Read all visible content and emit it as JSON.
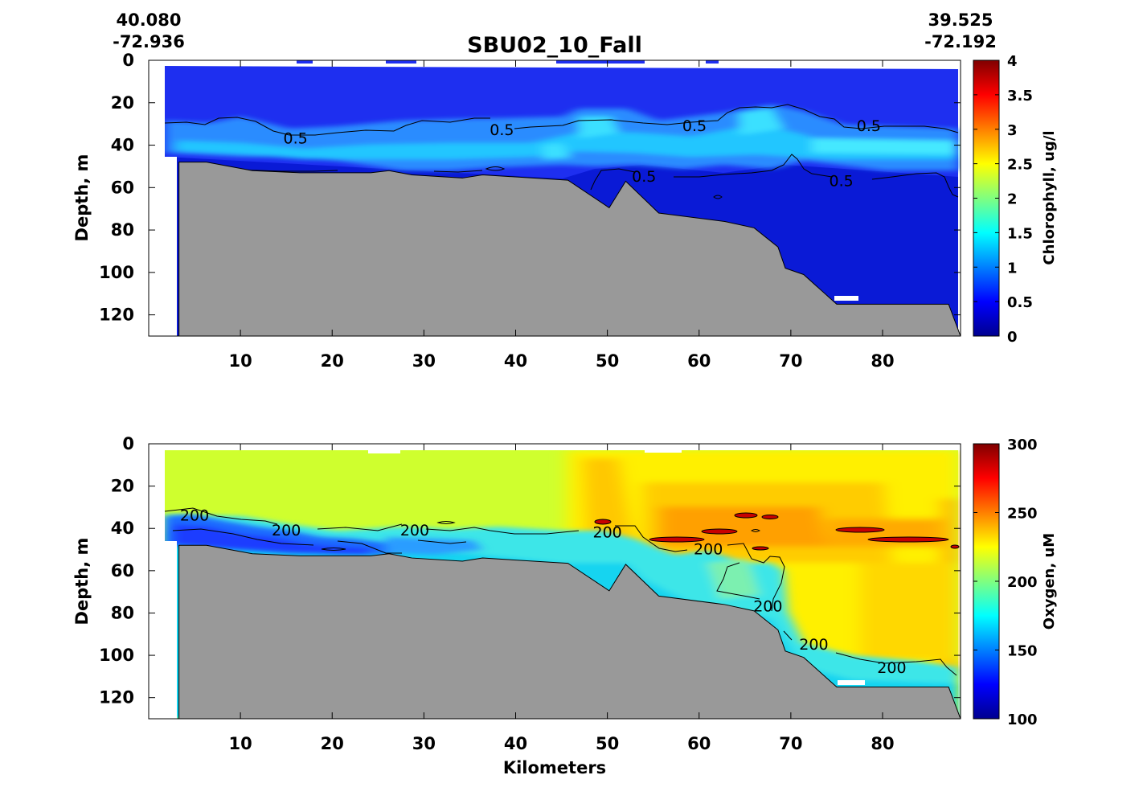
{
  "figure": {
    "title": "SBU02_10_Fall",
    "start_coord": {
      "lat": "40.080",
      "lon": "-72.936"
    },
    "end_coord": {
      "lat": "39.525",
      "lon": "-72.192"
    },
    "xlabel": "Kilometers"
  },
  "chart_data": [
    {
      "type": "heatmap",
      "variable": "Chlorophyll",
      "ylabel": "Depth, m",
      "colorbar_label": "Chlorophyll, ug/l",
      "colormap": "jet",
      "xlim": [
        0,
        88.5
      ],
      "ylim": [
        130,
        0
      ],
      "xticks": [
        10,
        20,
        30,
        40,
        50,
        60,
        70,
        80
      ],
      "yticks": [
        0,
        20,
        40,
        60,
        80,
        100,
        120
      ],
      "clim": [
        0,
        4
      ],
      "cticks": [
        "0",
        "0.5",
        "1",
        "1.5",
        "2",
        "2.5",
        "3",
        "3.5",
        "4"
      ],
      "contour_level": 0.5,
      "contour_labels": [
        {
          "text": "0.5",
          "x": 16,
          "y": 37
        },
        {
          "text": "0.5",
          "x": 38.5,
          "y": 33
        },
        {
          "text": "0.5",
          "x": 59.5,
          "y": 31
        },
        {
          "text": "0.5",
          "x": 78.5,
          "y": 31
        },
        {
          "text": "0.5",
          "x": 54,
          "y": 55
        },
        {
          "text": "0.5",
          "x": 75.5,
          "y": 57
        }
      ],
      "features": [
        "Low chlorophyll (~0.2 ug/l) in the upper 30 m",
        "Subsurface maximum ~1 ug/l at 30-50 m depth",
        "Values ~0.3 ug/l below 55 m"
      ]
    },
    {
      "type": "heatmap",
      "variable": "Oxygen",
      "ylabel": "Depth, m",
      "colorbar_label": "Oxygen, uM",
      "colormap": "jet",
      "xlim": [
        0,
        88.5
      ],
      "ylim": [
        130,
        0
      ],
      "xticks": [
        10,
        20,
        30,
        40,
        50,
        60,
        70,
        80
      ],
      "yticks": [
        0,
        20,
        40,
        60,
        80,
        100,
        120
      ],
      "clim": [
        100,
        300
      ],
      "cticks": [
        "100",
        "150",
        "200",
        "250",
        "300"
      ],
      "contour_level": 200,
      "contour_labels": [
        {
          "text": "200",
          "x": 5,
          "y": 34
        },
        {
          "text": "200",
          "x": 15,
          "y": 41
        },
        {
          "text": "200",
          "x": 29,
          "y": 41
        },
        {
          "text": "200",
          "x": 50,
          "y": 42
        },
        {
          "text": "200",
          "x": 61,
          "y": 50
        },
        {
          "text": "200",
          "x": 67.5,
          "y": 77
        },
        {
          "text": "200",
          "x": 72.5,
          "y": 95
        },
        {
          "text": "200",
          "x": 81,
          "y": 106
        }
      ],
      "features": [
        "Surface oxygen ~215 uM west of 45 km, ~230 uM east",
        "Local maxima ~260-280 uM at 40-50 m between 48 and 90 km",
        "Low oxygen ~120-140 uM at 35-50 m for x < 30 km",
        "Bottom water ~175 uM"
      ]
    }
  ],
  "bathymetry": {
    "x": [
      3.3,
      6.3,
      11.3,
      16.5,
      19.5,
      24.2,
      26.2,
      28.7,
      34.2,
      36.4,
      45.7,
      50.2,
      52.0,
      55.6,
      62.8,
      66.0,
      68.6,
      69.4,
      71.4,
      75.0,
      87.2,
      88.5
    ],
    "depth": [
      48,
      48,
      52,
      53,
      53,
      53,
      52,
      54,
      55.5,
      54,
      56.5,
      69.5,
      57,
      72,
      76,
      79,
      88,
      98,
      101,
      115,
      115,
      130
    ],
    "fill_color": "#999999"
  }
}
